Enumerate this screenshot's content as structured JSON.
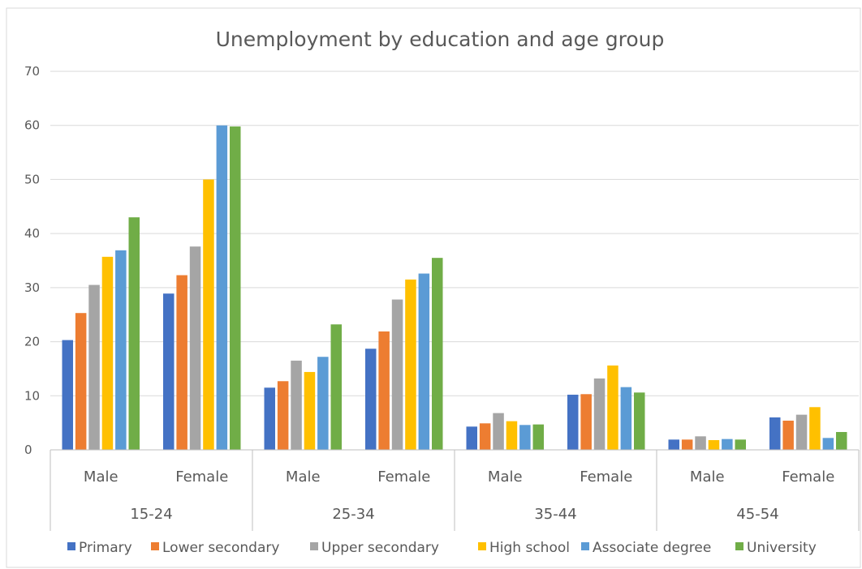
{
  "chart_data": {
    "type": "bar",
    "title": "Unemployment by education and age group",
    "xlabel": "",
    "ylabel": "",
    "ylim": [
      0,
      70
    ],
    "yticks": [
      0,
      10,
      20,
      30,
      40,
      50,
      60,
      70
    ],
    "grid": true,
    "legend_position": "bottom",
    "groups": [
      {
        "label": "15-24",
        "categories": [
          "Male",
          "Female"
        ]
      },
      {
        "label": "25-34",
        "categories": [
          "Male",
          "Female"
        ]
      },
      {
        "label": "35-44",
        "categories": [
          "Male",
          "Female"
        ]
      },
      {
        "label": "45-54",
        "categories": [
          "Male",
          "Female"
        ]
      }
    ],
    "series": [
      {
        "name": "Primary",
        "color": "#4472C4",
        "values": [
          20.3,
          28.9,
          11.5,
          18.7,
          4.3,
          10.2,
          1.9,
          6.0
        ]
      },
      {
        "name": "Lower secondary",
        "color": "#ED7D31",
        "values": [
          25.3,
          32.3,
          12.7,
          21.9,
          4.9,
          10.3,
          1.9,
          5.4
        ]
      },
      {
        "name": "Upper secondary",
        "color": "#A5A5A5",
        "values": [
          30.5,
          37.6,
          16.5,
          27.8,
          6.8,
          13.2,
          2.5,
          6.5
        ]
      },
      {
        "name": "High school",
        "color": "#FFC000",
        "values": [
          35.7,
          50.0,
          14.4,
          31.5,
          5.3,
          15.6,
          1.8,
          7.9
        ]
      },
      {
        "name": "Associate degree",
        "color": "#5B9BD5",
        "values": [
          36.9,
          60.0,
          17.2,
          32.6,
          4.6,
          11.6,
          2.0,
          2.2
        ]
      },
      {
        "name": "University",
        "color": "#70AD47",
        "values": [
          43.0,
          59.8,
          23.2,
          35.5,
          4.7,
          10.6,
          1.9,
          3.3
        ]
      }
    ]
  }
}
